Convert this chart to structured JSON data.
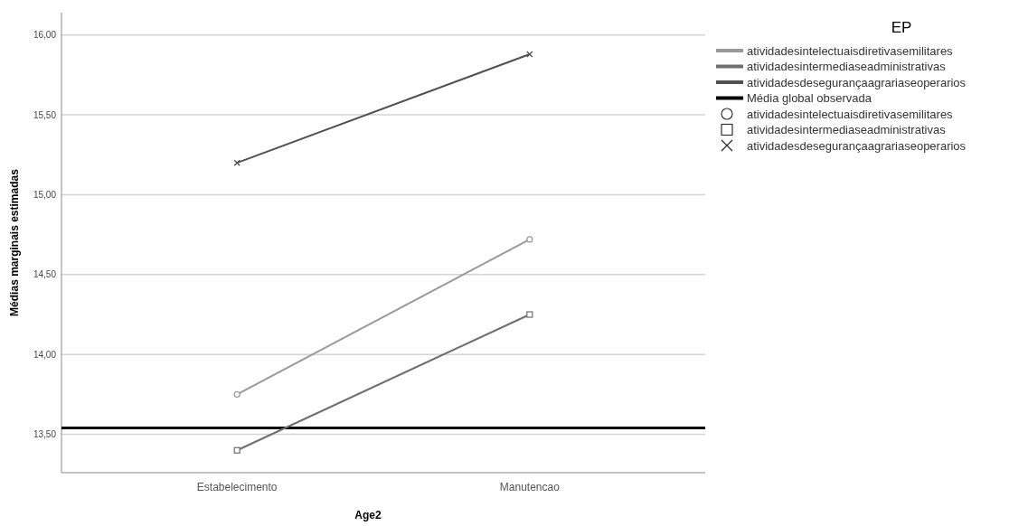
{
  "chart_data": {
    "type": "line",
    "xlabel": "Age2",
    "ylabel": "Médias marginais estimadas",
    "legend_title": "EP",
    "categories": [
      "Estabelecimento",
      "Manutencao"
    ],
    "series": [
      {
        "name": "atividadesintelectuaisdiretivasemilitares",
        "color": "#9a9a9a",
        "values": [
          13.75,
          14.72
        ],
        "marker": "circle"
      },
      {
        "name": "atividadesintermediaseadministrativas",
        "color": "#6e6e6e",
        "values": [
          13.4,
          14.25
        ],
        "marker": "square"
      },
      {
        "name": "atividadesdesegurançaagrariaseoperarios",
        "color": "#505050",
        "values": [
          15.2,
          15.88
        ],
        "marker": "cross"
      }
    ],
    "ref_lines": [
      {
        "axis": "y",
        "value": 13.54,
        "label": "Média global observada",
        "color": "#000000"
      }
    ],
    "ylim": [
      13.26,
      16.14
    ],
    "yticks": [
      {
        "value": 13.5,
        "label": "13,50"
      },
      {
        "value": 14,
        "label": "14,00"
      },
      {
        "value": 14.5,
        "label": "14,50"
      },
      {
        "value": 15,
        "label": "15,00"
      },
      {
        "value": 15.5,
        "label": "15,50"
      },
      {
        "value": 16,
        "label": "16,00"
      }
    ],
    "grid": "y",
    "legend": "right",
    "line_style": "solid"
  }
}
